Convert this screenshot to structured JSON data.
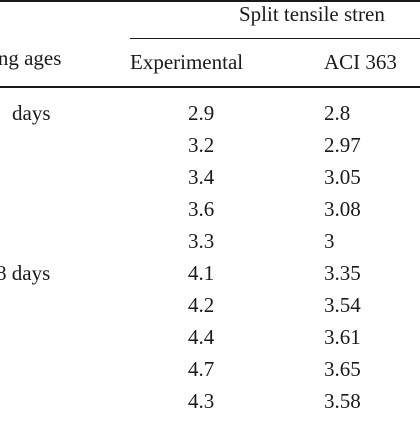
{
  "table": {
    "group_header": "Split tensile stren",
    "ages_header": "ing ages",
    "col_experimental": "Experimental",
    "col_aci": "ACI 363",
    "rows": [
      {
        "age": "days",
        "experimental": "2.9",
        "aci": "2.8"
      },
      {
        "age": "",
        "experimental": "3.2",
        "aci": "2.97"
      },
      {
        "age": "",
        "experimental": "3.4",
        "aci": "3.05"
      },
      {
        "age": "",
        "experimental": "3.6",
        "aci": "3.08"
      },
      {
        "age": "",
        "experimental": "3.3",
        "aci": "3"
      },
      {
        "age": "8 days",
        "experimental": "4.1",
        "aci": "3.35"
      },
      {
        "age": "",
        "experimental": "4.2",
        "aci": "3.54"
      },
      {
        "age": "",
        "experimental": "4.4",
        "aci": "3.61"
      },
      {
        "age": "",
        "experimental": "4.7",
        "aci": "3.65"
      },
      {
        "age": "",
        "experimental": "4.3",
        "aci": "3.58"
      }
    ]
  }
}
